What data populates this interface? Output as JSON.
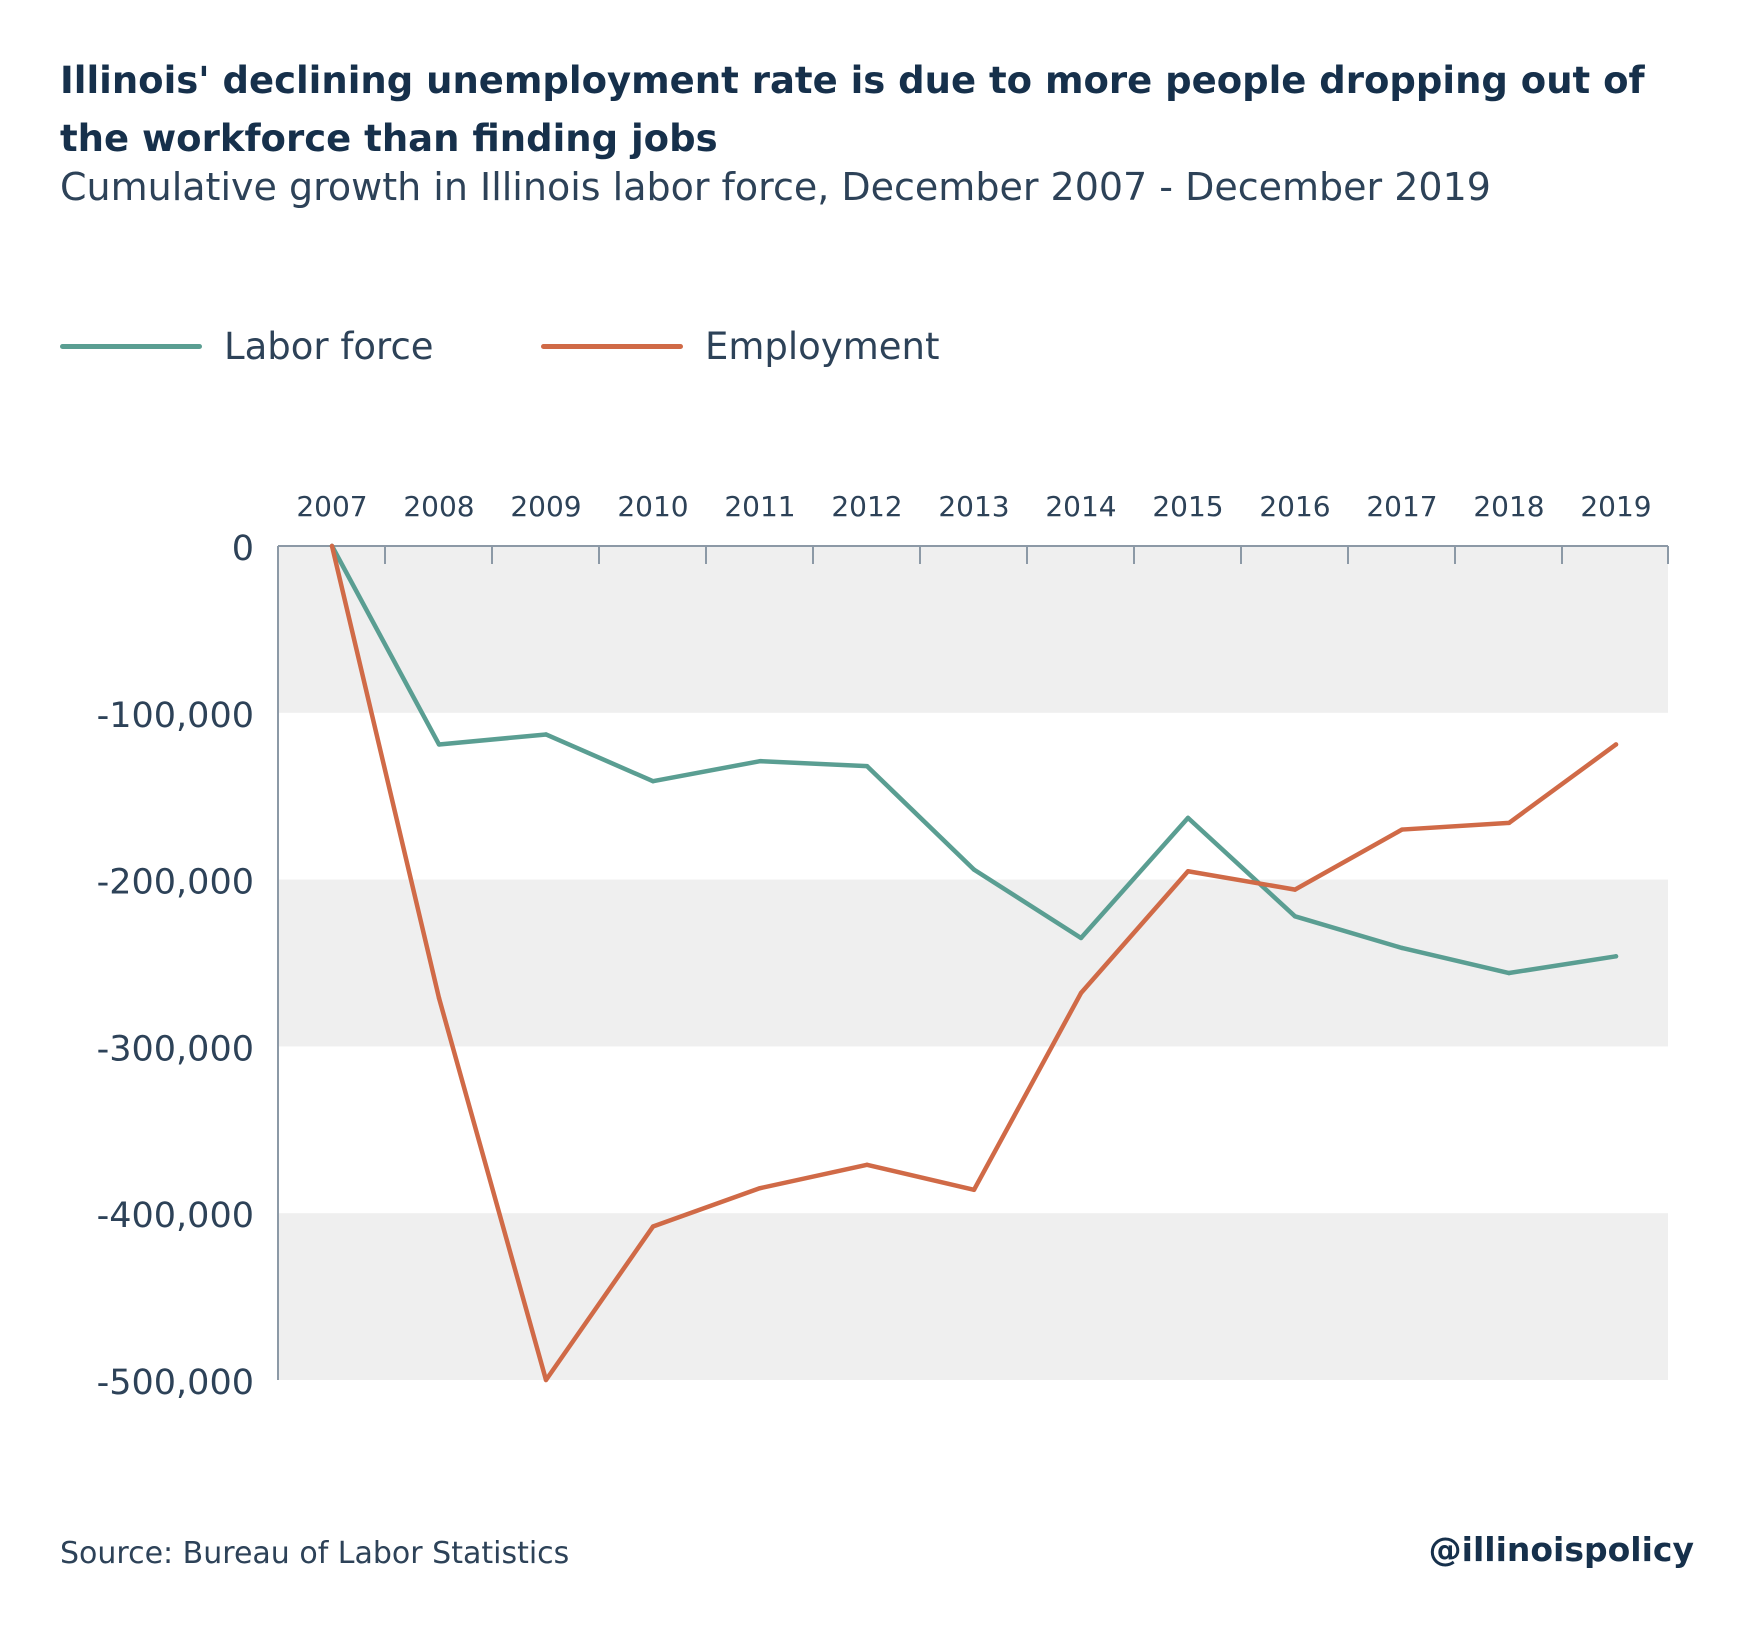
{
  "colors": {
    "labor_force": "#5a9e92",
    "employment": "#d06a47",
    "band": "#efefef",
    "axis": "#8c99a6",
    "text": "#2d4258"
  },
  "chart_data": {
    "type": "line",
    "title": "Illinois' declining unemployment rate is due to more people dropping out of the workforce than finding jobs",
    "subtitle": "Cumulative growth in Illinois labor force, December 2007 - December 2019",
    "x": [
      "2007",
      "2008",
      "2009",
      "2010",
      "2011",
      "2012",
      "2013",
      "2014",
      "2015",
      "2016",
      "2017",
      "2018",
      "2019"
    ],
    "series": [
      {
        "name": "Labor force",
        "values": [
          0,
          -119000,
          -113000,
          -141000,
          -129000,
          -132000,
          -194000,
          -235000,
          -163000,
          -222000,
          -241000,
          -256000,
          -246000
        ]
      },
      {
        "name": "Employment",
        "values": [
          0,
          -271000,
          -500000,
          -408000,
          -385000,
          -371000,
          -386000,
          -268000,
          -195000,
          -206000,
          -170000,
          -166000,
          -119000
        ]
      }
    ],
    "ylim": [
      -500000,
      0
    ],
    "yticks": [
      0,
      -100000,
      -200000,
      -300000,
      -400000,
      -500000
    ],
    "ytick_labels": [
      "0",
      "-100,000",
      "-200,000",
      "-300,000",
      "-400,000",
      "-500,000"
    ],
    "x_axis_position": "top",
    "grid": "alternating horizontal bands",
    "legend_position": "top-left",
    "source": "Source: Bureau of Labor Statistics",
    "credit": "@illinoispolicy"
  }
}
